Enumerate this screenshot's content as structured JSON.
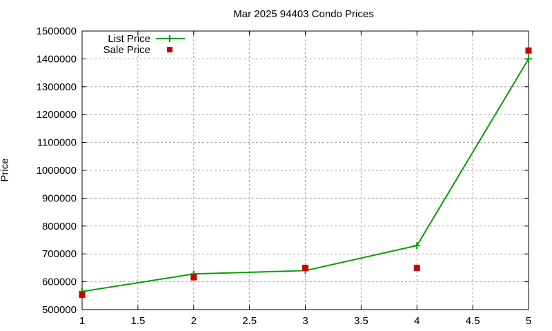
{
  "chart_data": {
    "type": "line",
    "title": "Mar 2025 94403 Condo Prices",
    "xlabel": "",
    "ylabel": "Price",
    "x": [
      1,
      2,
      3,
      4,
      5
    ],
    "xlim": [
      1,
      5
    ],
    "ylim": [
      500000,
      1500000
    ],
    "xticks": [
      "1",
      "1.5",
      "2",
      "2.5",
      "3",
      "3.5",
      "4",
      "4.5",
      "5"
    ],
    "yticks": [
      "500000",
      "600000",
      "700000",
      "800000",
      "900000",
      "1000000",
      "1100000",
      "1200000",
      "1300000",
      "1400000",
      "1500000"
    ],
    "grid": true,
    "legend_position": "top-left",
    "series": [
      {
        "name": "List Price",
        "style": "line+plus",
        "color": "#00a000",
        "values": [
          565000,
          628000,
          640000,
          730000,
          1400000
        ]
      },
      {
        "name": "Sale Price",
        "style": "square",
        "color": "#cc0000",
        "values": [
          553000,
          616000,
          650000,
          650000,
          1430000
        ]
      }
    ]
  }
}
